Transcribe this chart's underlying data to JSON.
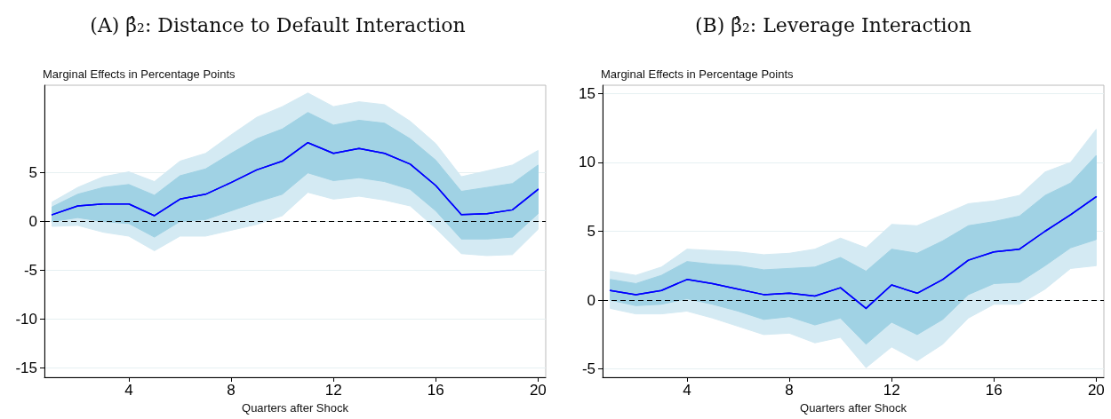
{
  "chart_data": [
    {
      "type": "line",
      "title": "(A) β̂₂: Distance to Default Interaction",
      "ylabel": "Marginal Effects in Percentage Points",
      "xlabel": "Quarters after Shock",
      "x": [
        1,
        2,
        3,
        4,
        5,
        6,
        7,
        8,
        9,
        10,
        11,
        12,
        13,
        14,
        15,
        16,
        17,
        18,
        19,
        20
      ],
      "series": [
        {
          "color": "#0000ff",
          "values": [
            0.7,
            1.6,
            1.8,
            1.8,
            0.6,
            2.3,
            2.8,
            4.0,
            5.3,
            6.2,
            8.1,
            7.0,
            7.5,
            7.0,
            5.9,
            3.7,
            0.7,
            0.8,
            1.2,
            3.3
          ],
          "lower": [
            -0.5,
            -0.4,
            -1.1,
            -1.5,
            -3.0,
            -1.5,
            -1.5,
            -0.9,
            -0.3,
            0.6,
            3.0,
            2.3,
            2.6,
            2.2,
            1.6,
            -0.7,
            -3.3,
            -3.5,
            -3.4,
            -0.8
          ],
          "upper": [
            2.0,
            3.5,
            4.6,
            5.1,
            4.1,
            6.2,
            7.0,
            8.9,
            10.7,
            11.8,
            13.2,
            11.8,
            12.3,
            12.0,
            10.3,
            8.0,
            4.6,
            5.2,
            5.8,
            7.3
          ]
        },
        {
          "color": "#0000ff",
          "values": [
            0.7,
            1.6,
            1.8,
            1.8,
            0.6,
            2.3,
            2.8,
            4.0,
            5.3,
            6.2,
            8.1,
            7.0,
            7.5,
            7.0,
            5.9,
            3.7,
            0.7,
            0.8,
            1.2,
            3.3
          ],
          "lower": [
            0.0,
            0.4,
            0.0,
            -0.2,
            -1.6,
            0.0,
            0.2,
            1.1,
            2.0,
            2.8,
            5.0,
            4.2,
            4.5,
            4.1,
            3.3,
            1.1,
            -1.8,
            -1.8,
            -1.6,
            0.8
          ],
          "upper": [
            1.5,
            2.8,
            3.5,
            3.8,
            2.7,
            4.7,
            5.4,
            7.0,
            8.5,
            9.5,
            11.2,
            9.9,
            10.4,
            10.1,
            8.5,
            6.3,
            3.1,
            3.5,
            3.9,
            5.8
          ]
        }
      ],
      "xlim": [
        0.7,
        20.3
      ],
      "xticks": [
        4,
        8,
        12,
        16,
        20
      ],
      "ylim": [
        -16,
        14
      ],
      "yticks": [
        -15,
        -10,
        -5,
        0,
        5
      ],
      "ref_lines": [
        {
          "axis": "y",
          "value": 0,
          "color": "#000000",
          "line_style": "dashed"
        }
      ],
      "grid": "y",
      "marker": "none",
      "line_style": "solid"
    },
    {
      "type": "line",
      "title": "(B) β̂₂: Leverage Interaction",
      "ylabel": "Marginal Effects in Percentage Points",
      "xlabel": "Quarters after Shock",
      "x": [
        1,
        2,
        3,
        4,
        5,
        6,
        7,
        8,
        9,
        10,
        11,
        12,
        13,
        14,
        15,
        16,
        17,
        18,
        19,
        20
      ],
      "series": [
        {
          "color": "#0000ff",
          "values": [
            0.7,
            0.4,
            0.7,
            1.5,
            1.2,
            0.8,
            0.4,
            0.5,
            0.3,
            0.9,
            -0.6,
            1.1,
            0.5,
            1.5,
            2.9,
            3.5,
            3.7,
            5.0,
            6.2,
            7.5
          ],
          "lower": [
            -0.6,
            -1.0,
            -1.0,
            -0.8,
            -1.3,
            -1.9,
            -2.5,
            -2.4,
            -3.1,
            -2.7,
            -4.9,
            -3.4,
            -4.4,
            -3.2,
            -1.3,
            -0.3,
            -0.3,
            0.8,
            2.3,
            2.5
          ],
          "upper": [
            2.1,
            1.8,
            2.4,
            3.7,
            3.6,
            3.5,
            3.3,
            3.4,
            3.7,
            4.5,
            3.8,
            5.5,
            5.4,
            6.2,
            7.0,
            7.2,
            7.6,
            9.3,
            10.0,
            12.4
          ]
        },
        {
          "color": "#0000ff",
          "values": [
            0.7,
            0.4,
            0.7,
            1.5,
            1.2,
            0.8,
            0.4,
            0.5,
            0.3,
            0.9,
            -0.6,
            1.1,
            0.5,
            1.5,
            2.9,
            3.5,
            3.7,
            5.0,
            6.2,
            7.5
          ],
          "lower": [
            0.0,
            -0.4,
            -0.3,
            0.1,
            -0.3,
            -0.8,
            -1.4,
            -1.2,
            -1.8,
            -1.3,
            -3.2,
            -1.6,
            -2.5,
            -1.4,
            0.4,
            1.2,
            1.3,
            2.5,
            3.8,
            4.4
          ],
          "upper": [
            1.5,
            1.2,
            1.8,
            2.8,
            2.6,
            2.5,
            2.2,
            2.3,
            2.4,
            3.1,
            2.1,
            3.7,
            3.4,
            4.3,
            5.4,
            5.7,
            6.1,
            7.6,
            8.5,
            10.5
          ]
        }
      ],
      "xlim": [
        0.7,
        20.3
      ],
      "xticks": [
        4,
        8,
        12,
        16,
        20
      ],
      "ylim": [
        -5.6,
        15.6
      ],
      "yticks": [
        -5,
        0,
        5,
        10,
        15
      ],
      "ref_lines": [
        {
          "axis": "y",
          "value": 0,
          "color": "#000000",
          "line_style": "dashed"
        }
      ],
      "grid": "y",
      "marker": "none",
      "line_style": "solid"
    }
  ]
}
